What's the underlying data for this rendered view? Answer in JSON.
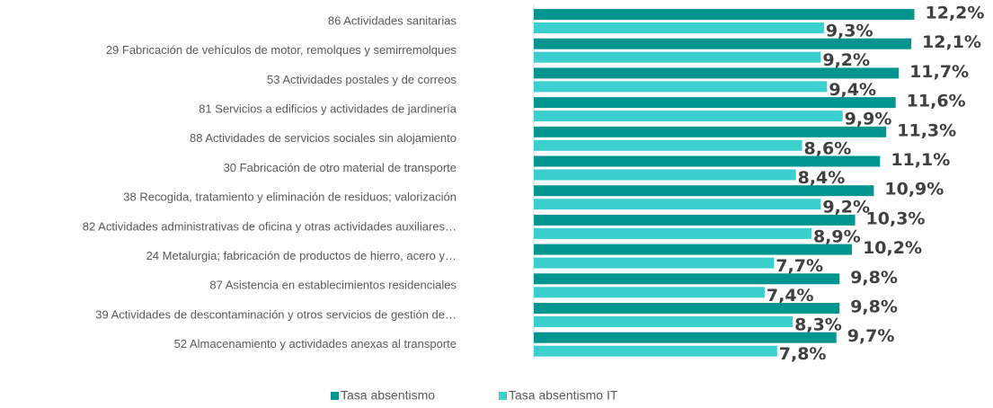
{
  "chart_data": {
    "type": "hbar",
    "categories": [
      "86 Actividades sanitarias",
      "29 Fabricación de vehículos de motor, remolques y semirremolques",
      "53 Actividades postales y de correos",
      "81 Servicios a edificios y actividades de jardinería",
      "88 Actividades de servicios sociales sin alojamiento",
      "30 Fabricación de otro material de transporte",
      "38 Recogida, tratamiento y eliminación de residuos; valorización",
      "82 Actividades administrativas de oficina y otras actividades auxiliares…",
      "24 Metalurgia; fabricación de productos de hierro, acero y…",
      "87 Asistencia en establecimientos residenciales",
      "39 Actividades de descontaminación y otros servicios de gestión de…",
      "52 Almacenamiento y actividades anexas al transporte"
    ],
    "series": [
      {
        "name": "Tasa absentismo",
        "color": "#00968f",
        "values": [
          12.2,
          12.1,
          11.7,
          11.6,
          11.3,
          11.1,
          10.9,
          10.3,
          10.2,
          9.8,
          9.8,
          9.7
        ],
        "value_labels": [
          "12,2%",
          "12,1%",
          "11,7%",
          "11,6%",
          "11,3%",
          "11,1%",
          "10,9%",
          "10,3%",
          "10,2%",
          "9,8%",
          "9,8%",
          "9,7%"
        ]
      },
      {
        "name": "Tasa absentismo IT",
        "color": "#3ccfcf",
        "values": [
          9.3,
          9.2,
          9.4,
          9.9,
          8.6,
          8.4,
          9.2,
          8.9,
          7.7,
          7.4,
          8.3,
          7.8
        ],
        "value_labels": [
          "9,3%",
          "9,2%",
          "9,4%",
          "9,9%",
          "8,6%",
          "8,4%",
          "9,2%",
          "8,9%",
          "7,7%",
          "7,4%",
          "8,3%",
          "7,8%"
        ]
      }
    ],
    "xlim": [
      0,
      14
    ],
    "legend": "bottom"
  }
}
